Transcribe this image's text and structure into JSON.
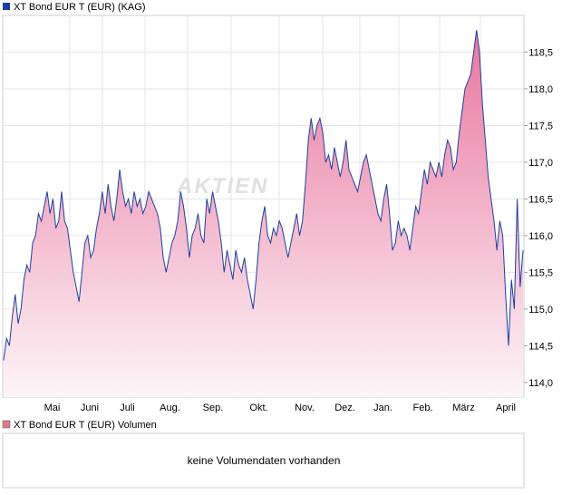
{
  "chart_data": [
    {
      "type": "area",
      "legend": "XT Bond EUR T (EUR) (KAG)",
      "watermark": "AKTIEN",
      "colors": {
        "line": "#1f3f9f",
        "fill_top": "#e8769e",
        "fill_bottom": "#fdf5f8",
        "legend_swatch": "#1f3f9f",
        "grid": "#e6e6e6"
      },
      "x_tick_labels": [
        "Mai",
        "Juni",
        "Juli",
        "Aug.",
        "Sep.",
        "Okt.",
        "Nov.",
        "Dez.",
        "Jan.",
        "Feb.",
        "März",
        "April"
      ],
      "y_tick_labels": [
        "114,0",
        "114,5",
        "115,0",
        "115,5",
        "116,0",
        "116,5",
        "117,0",
        "117,5",
        "118,0",
        "118,5"
      ],
      "ylim": [
        113.8,
        119.0
      ],
      "y_axis_side": "right",
      "grid": true,
      "series": [
        {
          "values": [
            114.3,
            114.6,
            114.5,
            114.9,
            115.2,
            114.8,
            115.0,
            115.4,
            115.6,
            115.5,
            115.9,
            116.0,
            116.3,
            116.2,
            116.4,
            116.6,
            116.3,
            116.5,
            116.1,
            116.2,
            116.6,
            116.2,
            116.1,
            115.8,
            115.5,
            115.3,
            115.1,
            115.5,
            115.9,
            116.0,
            115.7,
            115.8,
            116.1,
            116.3,
            116.6,
            116.3,
            116.7,
            116.4,
            116.2,
            116.5,
            116.9,
            116.6,
            116.4,
            116.5,
            116.3,
            116.6,
            116.4,
            116.5,
            116.3,
            116.4,
            116.6,
            116.5,
            116.4,
            116.3,
            116.1,
            115.7,
            115.5,
            115.7,
            115.9,
            116.0,
            116.2,
            116.6,
            116.4,
            116.1,
            115.7,
            116.0,
            116.1,
            116.3,
            116.0,
            115.9,
            116.5,
            116.3,
            116.6,
            116.4,
            116.2,
            115.9,
            115.5,
            115.8,
            115.6,
            115.4,
            115.8,
            115.6,
            115.5,
            115.7,
            115.4,
            115.2,
            115.0,
            115.4,
            115.9,
            116.2,
            116.4,
            116.0,
            115.9,
            116.1,
            116.0,
            116.2,
            116.1,
            115.9,
            115.7,
            115.9,
            116.1,
            116.3,
            116.0,
            116.2,
            116.7,
            117.3,
            117.6,
            117.3,
            117.5,
            117.6,
            117.4,
            117.0,
            117.1,
            116.9,
            117.2,
            117.0,
            116.8,
            117.0,
            117.3,
            116.9,
            116.8,
            116.7,
            116.6,
            116.8,
            117.0,
            117.1,
            116.9,
            116.7,
            116.5,
            116.3,
            116.2,
            116.5,
            116.7,
            116.3,
            115.8,
            115.9,
            116.2,
            116.0,
            116.1,
            116.0,
            115.8,
            116.1,
            116.4,
            116.3,
            116.6,
            116.9,
            116.7,
            117.0,
            116.9,
            116.8,
            117.0,
            116.8,
            117.1,
            117.3,
            117.2,
            116.9,
            117.0,
            117.4,
            117.7,
            118.0,
            118.1,
            118.2,
            118.5,
            118.8,
            118.5,
            117.8,
            117.3,
            116.8,
            116.5,
            116.2,
            115.8,
            116.2,
            116.0,
            115.2,
            114.5,
            115.4,
            115.0,
            116.5,
            115.3,
            115.8
          ]
        }
      ]
    },
    {
      "type": "bar",
      "legend": "XT Bond EUR T (EUR) Volumen",
      "colors": {
        "legend_swatch": "#e07b85"
      },
      "no_data_message": "keine Volumendaten vorhanden"
    }
  ]
}
